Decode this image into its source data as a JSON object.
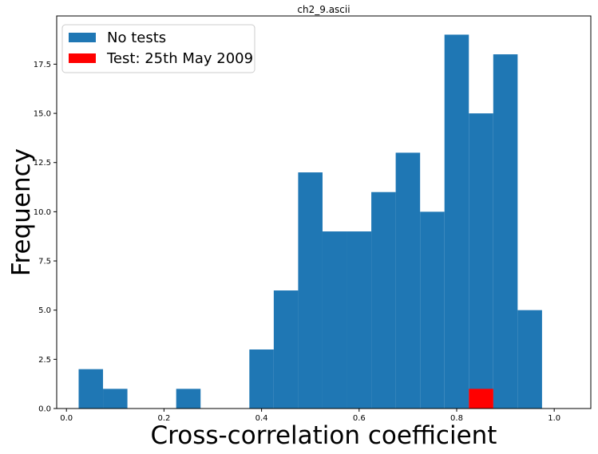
{
  "chart_data": {
    "type": "bar",
    "title": "ch2_9.ascii",
    "xlabel": "Cross-correlation coefficient",
    "ylabel": "Frequency",
    "xlim": [
      -0.02,
      1.075
    ],
    "ylim": [
      0,
      19.95
    ],
    "x_ticks": [
      "0.0",
      "0.2",
      "0.4",
      "0.6",
      "0.8",
      "1.0"
    ],
    "x_tick_values": [
      0.0,
      0.2,
      0.4,
      0.6,
      0.8,
      1.0
    ],
    "y_ticks": [
      "0.0",
      "2.5",
      "5.0",
      "7.5",
      "10.0",
      "12.5",
      "15.0",
      "17.5"
    ],
    "y_tick_values": [
      0.0,
      2.5,
      5.0,
      7.5,
      10.0,
      12.5,
      15.0,
      17.5
    ],
    "legend_position": "upper-left",
    "grid": false,
    "series": [
      {
        "name": "No tests",
        "color": "#1f77b4",
        "bins": [
          [
            0.025,
            0.075
          ],
          [
            0.075,
            0.125
          ],
          [
            0.125,
            0.175
          ],
          [
            0.175,
            0.225
          ],
          [
            0.225,
            0.275
          ],
          [
            0.275,
            0.325
          ],
          [
            0.325,
            0.375
          ],
          [
            0.375,
            0.425
          ],
          [
            0.425,
            0.475
          ],
          [
            0.475,
            0.525
          ],
          [
            0.525,
            0.575
          ],
          [
            0.575,
            0.625
          ],
          [
            0.625,
            0.675
          ],
          [
            0.675,
            0.725
          ],
          [
            0.725,
            0.775
          ],
          [
            0.775,
            0.825
          ],
          [
            0.825,
            0.875
          ],
          [
            0.875,
            0.925
          ],
          [
            0.925,
            0.975
          ]
        ],
        "values": [
          2,
          1,
          0,
          0,
          1,
          0,
          0,
          3,
          6,
          12,
          9,
          9,
          11,
          13,
          10,
          19,
          15,
          18,
          5
        ]
      },
      {
        "name": "Test: 25th May 2009",
        "color": "#ff0000",
        "bins": [
          [
            0.825,
            0.875
          ]
        ],
        "values": [
          1
        ]
      }
    ]
  }
}
